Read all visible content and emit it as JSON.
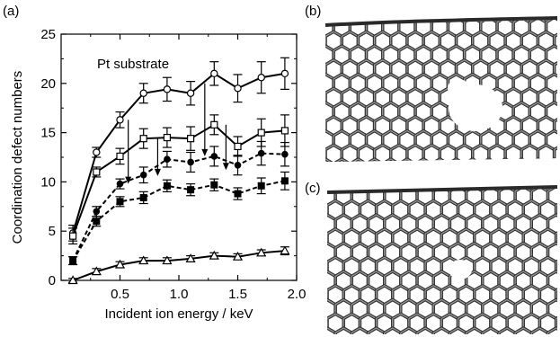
{
  "panels": {
    "a": "(a)",
    "b": "(b)",
    "c": "(c)"
  },
  "chart_data": {
    "type": "line",
    "title": "",
    "annotation": "Pt substrate",
    "xlabel": "Incident ion energy / keV",
    "ylabel": "Coordination defect numbers",
    "xlim": [
      0,
      2.0
    ],
    "ylim": [
      0,
      25
    ],
    "xticks": [
      "0.5",
      "1.0",
      "1.5",
      "2.0"
    ],
    "yticks": [
      "0",
      "5",
      "10",
      "15",
      "20",
      "25"
    ],
    "x": [
      0.1,
      0.3,
      0.5,
      0.7,
      0.9,
      1.1,
      1.3,
      1.5,
      1.7,
      1.9
    ],
    "series": [
      {
        "marker": "open-circle",
        "line": "solid",
        "values": [
          4.8,
          13.0,
          16.3,
          19.0,
          19.4,
          19.0,
          21.0,
          19.5,
          20.6,
          21.0
        ],
        "errors": [
          0.8,
          0.5,
          0.8,
          1.0,
          1.2,
          1.2,
          1.2,
          1.4,
          1.6,
          1.6
        ]
      },
      {
        "marker": "open-square",
        "line": "solid",
        "values": [
          4.5,
          11.0,
          12.6,
          14.4,
          14.5,
          14.4,
          15.8,
          13.6,
          15.0,
          15.2
        ],
        "errors": [
          0.8,
          0.5,
          0.8,
          1.0,
          1.0,
          1.2,
          1.0,
          1.0,
          1.4,
          1.6
        ]
      },
      {
        "marker": "filled-circle",
        "line": "dashed",
        "values": [
          2.0,
          7.0,
          9.8,
          10.7,
          12.3,
          12.0,
          12.6,
          11.7,
          12.9,
          12.8
        ],
        "errors": [
          0.4,
          0.5,
          0.5,
          0.8,
          0.8,
          1.0,
          1.0,
          1.0,
          1.2,
          1.2
        ]
      },
      {
        "marker": "filled-square",
        "line": "dashed",
        "values": [
          2.0,
          6.0,
          8.0,
          8.4,
          9.6,
          9.2,
          9.7,
          8.8,
          9.6,
          10.1
        ],
        "errors": [
          0.4,
          0.5,
          0.5,
          0.6,
          0.6,
          0.6,
          0.6,
          0.6,
          0.8,
          0.9
        ]
      },
      {
        "marker": "open-triangle",
        "line": "solid",
        "values": [
          0.0,
          0.9,
          1.6,
          2.0,
          2.0,
          2.2,
          2.5,
          2.4,
          2.8,
          3.0
        ],
        "errors": [
          0.2,
          0.3,
          0.3,
          0.3,
          0.3,
          0.3,
          0.3,
          0.3,
          0.3,
          0.4
        ]
      }
    ],
    "arrows": [
      {
        "x": 0.57,
        "from": 16.3,
        "to": 9.8
      },
      {
        "x": 0.82,
        "from": 14.4,
        "to": 10.6
      },
      {
        "x": 1.22,
        "from": 20.0,
        "to": 12.6
      },
      {
        "x": 1.4,
        "from": 15.8,
        "to": 11.2
      }
    ],
    "grid": false,
    "legend": "none"
  },
  "images": [
    {
      "panel": "b",
      "subject": "nanotube-with-hole"
    },
    {
      "panel": "c",
      "subject": "nanotube-with-defects"
    }
  ]
}
